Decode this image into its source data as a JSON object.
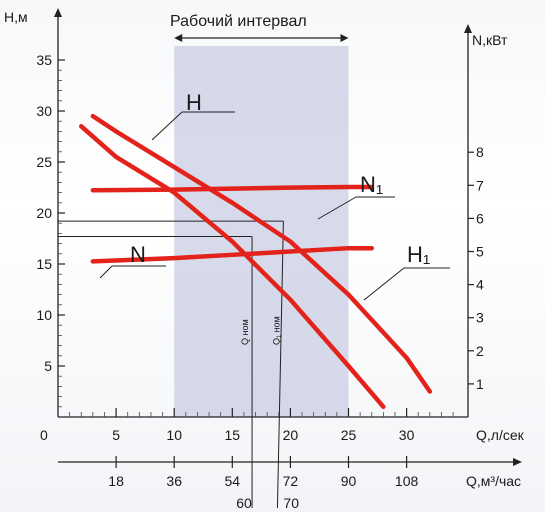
{
  "chart_data": {
    "type": "line",
    "title": "Рабочий интервал",
    "left_axis": {
      "label": "H,м",
      "range": [
        0,
        35
      ],
      "ticks": [
        "5",
        "10",
        "15",
        "20",
        "25",
        "30",
        "35"
      ]
    },
    "right_axis": {
      "label": "N,кВт",
      "range": [
        0,
        8
      ],
      "ticks": [
        "1",
        "2",
        "3",
        "4",
        "5",
        "6",
        "7",
        "8"
      ]
    },
    "x_axis_flow_ls": {
      "label": "Q,л/сек",
      "range": [
        0,
        32
      ],
      "ticks": [
        "0",
        "5",
        "10",
        "15",
        "20",
        "25",
        "30"
      ]
    },
    "x_axis_flow_m3h": {
      "label": "Q,м³/час",
      "ticks": [
        "18",
        "36",
        "54",
        "72",
        "90",
        "108"
      ],
      "tick_positions_ls": [
        5,
        10,
        15,
        20,
        25,
        30
      ]
    },
    "working_interval": {
      "from_ls": 10,
      "to_ls": 25
    },
    "nominal_labels": [
      "Q ном",
      "Q₁ ном"
    ],
    "nominal_values_m3h": [
      "60",
      "70"
    ],
    "nominal_ls": [
      16.7,
      19.4
    ],
    "series": [
      {
        "name": "H",
        "axis": "left",
        "color": "#e3231b",
        "x": [
          2,
          5,
          10,
          15,
          20,
          25,
          28
        ],
        "y": [
          28.5,
          25.5,
          22.0,
          17.2,
          11.5,
          5.0,
          1.0
        ]
      },
      {
        "name": "H1",
        "axis": "left",
        "color": "#e3231b",
        "x": [
          3,
          5,
          10,
          15,
          20,
          25,
          30,
          32
        ],
        "y": [
          29.5,
          28.0,
          24.5,
          21.0,
          17.2,
          12.0,
          5.8,
          2.5
        ]
      },
      {
        "name": "N",
        "axis": "right",
        "color": "#e3231b",
        "x": [
          3,
          10,
          15,
          20,
          25,
          27
        ],
        "y": [
          4.7,
          4.8,
          4.9,
          5.0,
          5.1,
          5.1
        ]
      },
      {
        "name": "N1",
        "axis": "right",
        "color": "#e3231b",
        "x": [
          3,
          10,
          15,
          20,
          25,
          27
        ],
        "y": [
          6.85,
          6.87,
          6.9,
          6.93,
          6.95,
          6.95
        ]
      }
    ],
    "curve_labels": [
      "H",
      "N₁",
      "N",
      "H₁"
    ],
    "grid": false
  }
}
